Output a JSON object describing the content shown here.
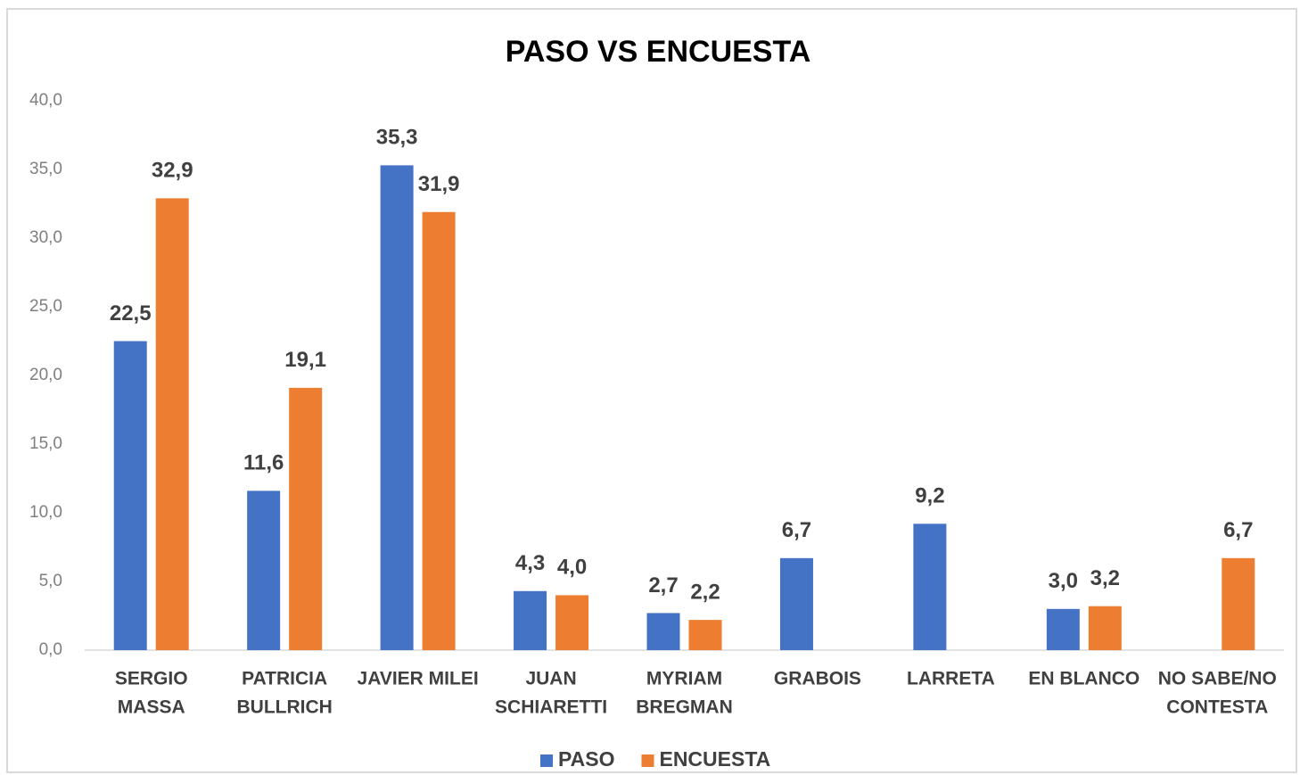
{
  "chart_data": {
    "type": "bar",
    "title": "PASO VS ENCUESTA",
    "categories": [
      [
        "SERGIO",
        "MASSA"
      ],
      [
        "PATRICIA",
        "BULLRICH"
      ],
      [
        "JAVIER MILEI"
      ],
      [
        "JUAN",
        "SCHIARETTI"
      ],
      [
        "MYRIAM",
        "BREGMAN"
      ],
      [
        "GRABOIS"
      ],
      [
        "LARRETA"
      ],
      [
        "EN BLANCO"
      ],
      [
        "NO SABE/NO",
        "CONTESTA"
      ]
    ],
    "series": [
      {
        "name": "PASO",
        "color": "#4472c4",
        "values": [
          22.5,
          11.6,
          35.3,
          4.3,
          2.7,
          6.7,
          9.2,
          3.0,
          null
        ],
        "value_labels": [
          "22,5",
          "11,6",
          "35,3",
          "4,3",
          "2,7",
          "6,7",
          "9,2",
          "3,0",
          null
        ]
      },
      {
        "name": "ENCUESTA",
        "color": "#ed7d31",
        "values": [
          32.9,
          19.1,
          31.9,
          4.0,
          2.2,
          null,
          null,
          3.2,
          6.7
        ],
        "value_labels": [
          "32,9",
          "19,1",
          "31,9",
          "4,0",
          "2,2",
          null,
          null,
          "3,2",
          "6,7"
        ]
      }
    ],
    "ylim": [
      0,
      40
    ],
    "yticks": [
      {
        "value": 0,
        "label": "0,0"
      },
      {
        "value": 5,
        "label": "5,0"
      },
      {
        "value": 10,
        "label": "10,0"
      },
      {
        "value": 15,
        "label": "15,0"
      },
      {
        "value": 20,
        "label": "20,0"
      },
      {
        "value": 25,
        "label": "25,0"
      },
      {
        "value": 30,
        "label": "30,0"
      },
      {
        "value": 35,
        "label": "35,0"
      },
      {
        "value": 40,
        "label": "40,0"
      }
    ],
    "grid": false,
    "legend": "bottom"
  }
}
